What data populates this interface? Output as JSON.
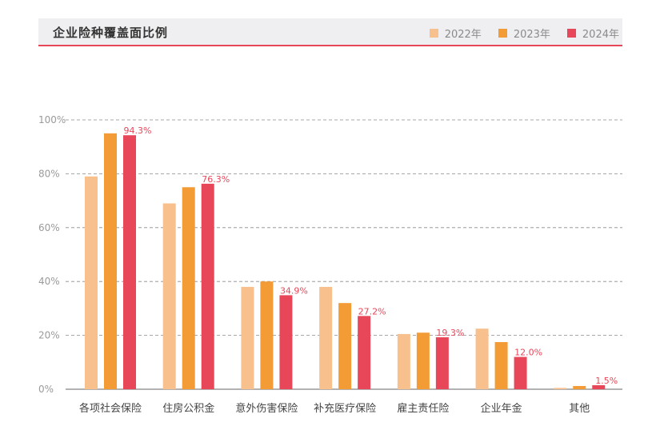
{
  "header": {
    "title": "企业险种覆盖面比例"
  },
  "chart_data": {
    "type": "bar",
    "title": "企业险种覆盖面比例",
    "categories": [
      "各项社会保险",
      "住房公积金",
      "意外伤害保险",
      "补充医疗保险",
      "雇主责任险",
      "企业年金",
      "其他"
    ],
    "series": [
      {
        "name": "2022年",
        "color": "#f8c08c",
        "values": [
          79,
          69,
          38,
          38,
          20.5,
          22.5,
          0.5
        ]
      },
      {
        "name": "2023年",
        "color": "#f39b34",
        "values": [
          95,
          75,
          40,
          32,
          21,
          17.5,
          1.2
        ]
      },
      {
        "name": "2024年",
        "color": "#e8475a",
        "values": [
          94.3,
          76.3,
          34.9,
          27.2,
          19.3,
          12.0,
          1.5
        ],
        "labels": [
          "94.3%",
          "76.3%",
          "34.9%",
          "27.2%",
          "19.3%",
          "12.0%",
          "1.5%"
        ]
      }
    ],
    "yticks": [
      "0%",
      "20%",
      "40%",
      "60%",
      "80%",
      "100%"
    ],
    "ylim": [
      0,
      100
    ],
    "grid": true,
    "legend_position": "top-right",
    "xlabel": "",
    "ylabel": ""
  }
}
